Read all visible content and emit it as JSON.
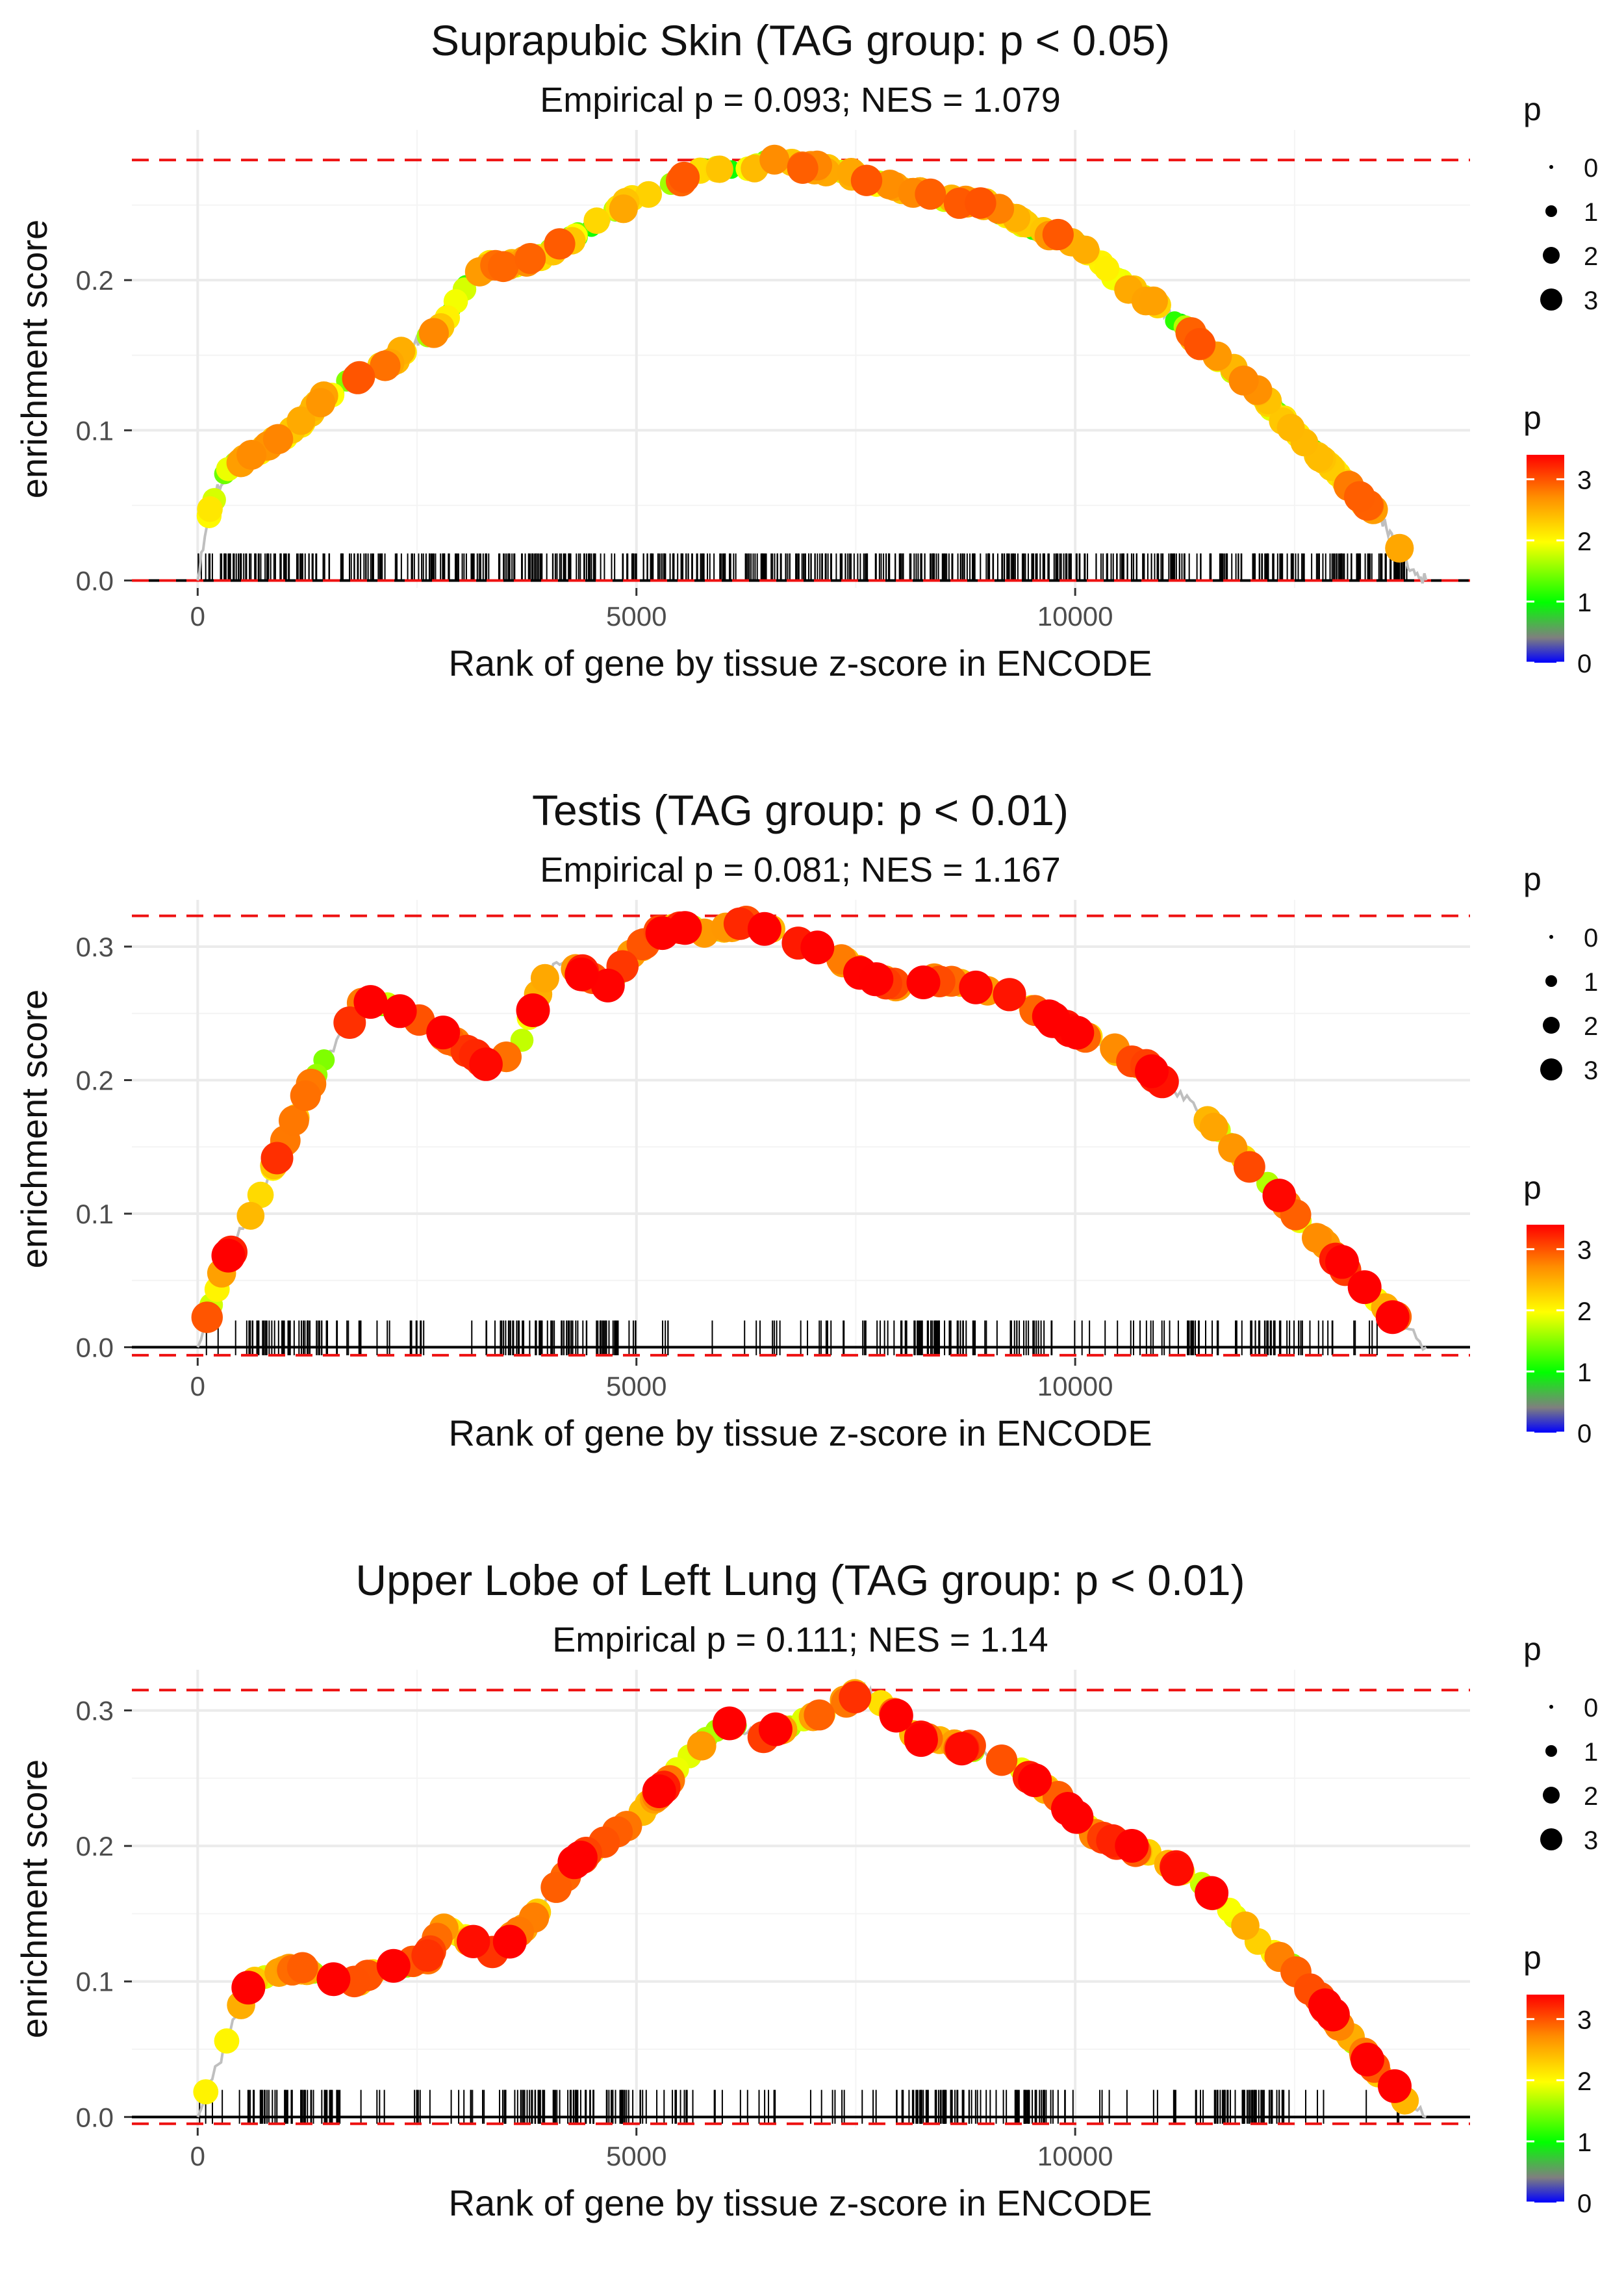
{
  "figure": {
    "type": "gsea_enrichment_panels",
    "panel_count": 3
  },
  "chart_data": [
    {
      "type": "line",
      "title": "Suprapubic Skin (TAG group: p < 0.05)",
      "subtitle": "Empirical p = 0.093; NES = 1.079",
      "xlabel": "Rank of gene by tissue z-score in ENCODE",
      "ylabel": "enrichment score",
      "xlim": [
        -750,
        14500
      ],
      "ylim": [
        -0.005,
        0.3
      ],
      "x_ticks": [
        0,
        5000,
        10000
      ],
      "x_tick_labels": [
        "0",
        "5000",
        "10000"
      ],
      "y_ticks": [
        0.0,
        0.1,
        0.2
      ],
      "y_tick_labels": [
        "0.0",
        "0.1",
        "0.2"
      ],
      "max_es": 0.28,
      "min_es": 0.0,
      "curve": [
        [
          0,
          0.0
        ],
        [
          80,
          0.03
        ],
        [
          150,
          0.05
        ],
        [
          300,
          0.07
        ],
        [
          500,
          0.08
        ],
        [
          800,
          0.09
        ],
        [
          1100,
          0.1
        ],
        [
          1400,
          0.12
        ],
        [
          1800,
          0.135
        ],
        [
          2200,
          0.145
        ],
        [
          2500,
          0.16
        ],
        [
          2800,
          0.17
        ],
        [
          3050,
          0.195
        ],
        [
          3250,
          0.21
        ],
        [
          3600,
          0.21
        ],
        [
          3900,
          0.215
        ],
        [
          4200,
          0.225
        ],
        [
          4600,
          0.24
        ],
        [
          5000,
          0.255
        ],
        [
          5400,
          0.265
        ],
        [
          5800,
          0.275
        ],
        [
          6200,
          0.272
        ],
        [
          6500,
          0.28
        ],
        [
          7000,
          0.275
        ],
        [
          7500,
          0.27
        ],
        [
          8000,
          0.26
        ],
        [
          8500,
          0.255
        ],
        [
          9000,
          0.25
        ],
        [
          9500,
          0.235
        ],
        [
          10000,
          0.225
        ],
        [
          10500,
          0.2
        ],
        [
          11000,
          0.18
        ],
        [
          11500,
          0.155
        ],
        [
          12000,
          0.13
        ],
        [
          12500,
          0.1
        ],
        [
          13000,
          0.07
        ],
        [
          13500,
          0.04
        ],
        [
          13800,
          0.01
        ],
        [
          14000,
          0.0
        ]
      ],
      "num_points": 340,
      "rug_count": 640,
      "rug_x_range": [
        0,
        13800
      ],
      "rug_length_es": 0.018,
      "x_max": 14000,
      "seed": 11,
      "bias": 0.0,
      "legend_size": {
        "title": "p",
        "labels": [
          "0",
          "1",
          "2",
          "3"
        ]
      },
      "legend_color": {
        "title": "p",
        "labels": [
          "3",
          "2",
          "1",
          "0"
        ]
      }
    },
    {
      "type": "line",
      "title": "Testis (TAG group: p < 0.01)",
      "subtitle": "Empirical p = 0.081; NES = 1.167",
      "xlabel": "Rank of gene by tissue z-score in ENCODE",
      "ylabel": "enrichment score",
      "xlim": [
        -750,
        14500
      ],
      "ylim": [
        -0.008,
        0.335
      ],
      "x_ticks": [
        0,
        5000,
        10000
      ],
      "x_tick_labels": [
        "0",
        "5000",
        "10000"
      ],
      "y_ticks": [
        0.0,
        0.1,
        0.2,
        0.3
      ],
      "y_tick_labels": [
        "0.0",
        "0.1",
        "0.2",
        "0.3"
      ],
      "max_es": 0.323,
      "min_es": -0.006,
      "curve": [
        [
          0,
          0.0
        ],
        [
          150,
          0.03
        ],
        [
          300,
          0.06
        ],
        [
          500,
          0.09
        ],
        [
          700,
          0.11
        ],
        [
          900,
          0.14
        ],
        [
          1100,
          0.17
        ],
        [
          1300,
          0.2
        ],
        [
          1500,
          0.22
        ],
        [
          1700,
          0.24
        ],
        [
          1900,
          0.26
        ],
        [
          2200,
          0.255
        ],
        [
          2500,
          0.245
        ],
        [
          2800,
          0.235
        ],
        [
          3100,
          0.22
        ],
        [
          3400,
          0.21
        ],
        [
          3700,
          0.23
        ],
        [
          3900,
          0.27
        ],
        [
          4100,
          0.29
        ],
        [
          4400,
          0.28
        ],
        [
          4700,
          0.27
        ],
        [
          4900,
          0.29
        ],
        [
          5200,
          0.31
        ],
        [
          5500,
          0.315
        ],
        [
          5900,
          0.31
        ],
        [
          6300,
          0.32
        ],
        [
          6800,
          0.305
        ],
        [
          7200,
          0.295
        ],
        [
          7600,
          0.28
        ],
        [
          8000,
          0.27
        ],
        [
          8400,
          0.275
        ],
        [
          8800,
          0.27
        ],
        [
          9200,
          0.265
        ],
        [
          9600,
          0.25
        ],
        [
          10000,
          0.235
        ],
        [
          10400,
          0.225
        ],
        [
          10800,
          0.21
        ],
        [
          11200,
          0.19
        ],
        [
          11600,
          0.165
        ],
        [
          12000,
          0.135
        ],
        [
          12500,
          0.1
        ],
        [
          13000,
          0.065
        ],
        [
          13600,
          0.025
        ],
        [
          14000,
          0.0
        ]
      ],
      "num_points": 190,
      "rug_count": 300,
      "rug_x_range": [
        0,
        13700
      ],
      "rug_length_es": 0.02,
      "x_max": 14000,
      "seed": 29,
      "bias": 0.55,
      "legend_size": {
        "title": "p",
        "labels": [
          "0",
          "1",
          "2",
          "3"
        ]
      },
      "legend_color": {
        "title": "p",
        "labels": [
          "3",
          "2",
          "1",
          "0"
        ]
      }
    },
    {
      "type": "line",
      "title": "Upper Lobe of Left Lung (TAG group: p < 0.01)",
      "subtitle": "Empirical p = 0.111; NES = 1.14",
      "xlabel": "Rank of gene by tissue z-score in ENCODE",
      "ylabel": "enrichment score",
      "xlim": [
        -750,
        14500
      ],
      "ylim": [
        -0.008,
        0.33
      ],
      "x_ticks": [
        0,
        5000,
        10000
      ],
      "x_tick_labels": [
        "0",
        "5000",
        "10000"
      ],
      "y_ticks": [
        0.0,
        0.1,
        0.2,
        0.3
      ],
      "y_tick_labels": [
        "0.0",
        "0.1",
        "0.2",
        "0.3"
      ],
      "max_es": 0.315,
      "min_es": -0.005,
      "curve": [
        [
          0,
          0.0
        ],
        [
          100,
          0.02
        ],
        [
          250,
          0.04
        ],
        [
          400,
          0.07
        ],
        [
          600,
          0.1
        ],
        [
          800,
          0.105
        ],
        [
          1100,
          0.11
        ],
        [
          1400,
          0.105
        ],
        [
          1800,
          0.1
        ],
        [
          2200,
          0.11
        ],
        [
          2600,
          0.115
        ],
        [
          2800,
          0.14
        ],
        [
          3100,
          0.13
        ],
        [
          3400,
          0.12
        ],
        [
          3700,
          0.14
        ],
        [
          4000,
          0.16
        ],
        [
          4300,
          0.19
        ],
        [
          4600,
          0.2
        ],
        [
          5000,
          0.22
        ],
        [
          5400,
          0.25
        ],
        [
          5800,
          0.28
        ],
        [
          6100,
          0.29
        ],
        [
          6400,
          0.28
        ],
        [
          6800,
          0.29
        ],
        [
          7200,
          0.3
        ],
        [
          7600,
          0.315
        ],
        [
          7900,
          0.3
        ],
        [
          8200,
          0.28
        ],
        [
          8600,
          0.275
        ],
        [
          9000,
          0.27
        ],
        [
          9400,
          0.255
        ],
        [
          9800,
          0.235
        ],
        [
          10200,
          0.21
        ],
        [
          10600,
          0.2
        ],
        [
          11000,
          0.19
        ],
        [
          11500,
          0.17
        ],
        [
          12000,
          0.135
        ],
        [
          12500,
          0.11
        ],
        [
          13000,
          0.07
        ],
        [
          13500,
          0.03
        ],
        [
          13900,
          0.005
        ],
        [
          14000,
          0.0
        ]
      ],
      "num_points": 210,
      "rug_count": 330,
      "rug_x_range": [
        0,
        13800
      ],
      "rug_length_es": 0.02,
      "x_max": 14000,
      "seed": 47,
      "bias": 0.5,
      "legend_size": {
        "title": "p",
        "labels": [
          "0",
          "1",
          "2",
          "3"
        ]
      },
      "legend_color": {
        "title": "p",
        "labels": [
          "3",
          "2",
          "1",
          "0"
        ]
      }
    }
  ],
  "colors": {
    "curve": "#bfbfbf",
    "reference_line": "#ee1111",
    "zero_line": "#000000",
    "rug": "#000000",
    "grid": "#ebebeb",
    "gradient": [
      "#0000ff",
      "#7f7f7f",
      "#00ff00",
      "#ffff00",
      "#ff8c00",
      "#ff0000"
    ]
  }
}
